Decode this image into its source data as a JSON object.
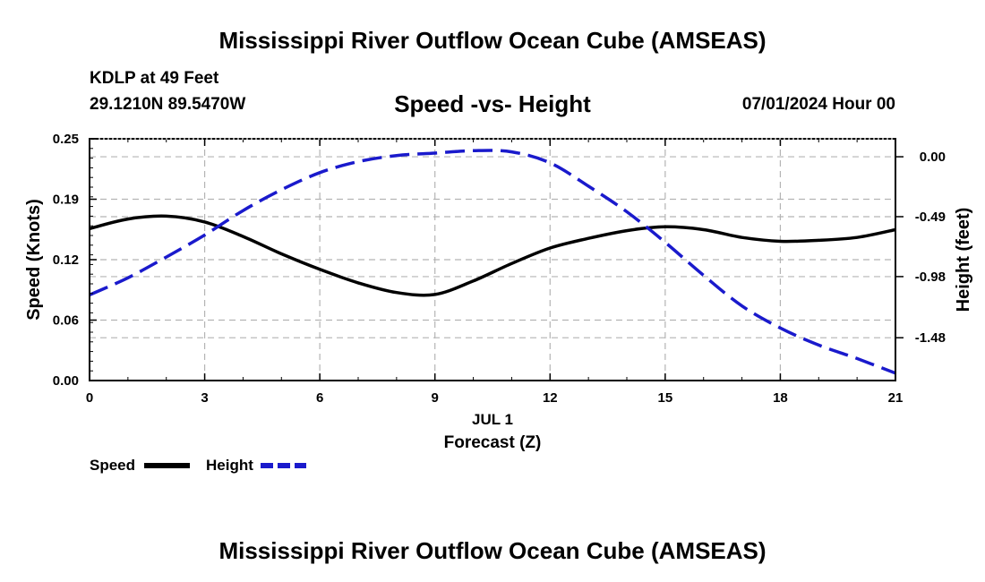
{
  "page": {
    "title": "Mississippi River Outflow Ocean Cube (AMSEAS)",
    "station": "KDLP at 49 Feet",
    "coordinates": "29.1210N  89.5470W",
    "subtitle": "Speed -vs- Height",
    "datetime": "07/01/2024 Hour 00",
    "bottom_title": "Mississippi River Outflow Ocean Cube (AMSEAS)"
  },
  "chart_data": {
    "type": "line",
    "title": "Speed -vs- Height",
    "xlabel": "Forecast (Z)",
    "x_date_label": "JUL 1",
    "ylabel": "Speed (Knots)",
    "y2label": "Height (feet)",
    "xlim": [
      0,
      21
    ],
    "ylim": [
      0,
      0.25
    ],
    "y2lim": [
      -1.83,
      0.147
    ],
    "x_ticks": [
      0,
      3,
      6,
      9,
      12,
      15,
      18,
      21
    ],
    "y_ticks": [
      "0.00",
      "0.06",
      "0.12",
      "0.19",
      "0.25"
    ],
    "y2_ticks": [
      "0.00",
      "-0.49",
      "-0.98",
      "-1.48"
    ],
    "grid": true,
    "legend": {
      "placement": "bottom-left",
      "entries": [
        "Speed",
        "Height"
      ]
    },
    "series": [
      {
        "name": "Speed",
        "axis": "left",
        "color": "#000000",
        "dash": "solid",
        "x": [
          0,
          1,
          2,
          3,
          4,
          5,
          6,
          7,
          8,
          9,
          10,
          11,
          12,
          13,
          14,
          15,
          16,
          17,
          18,
          19,
          20,
          21
        ],
        "values": [
          0.157,
          0.167,
          0.17,
          0.164,
          0.149,
          0.131,
          0.115,
          0.101,
          0.091,
          0.089,
          0.103,
          0.121,
          0.137,
          0.147,
          0.155,
          0.159,
          0.156,
          0.148,
          0.144,
          0.145,
          0.148,
          0.156
        ]
      },
      {
        "name": "Height",
        "axis": "right",
        "color": "#1a1acc",
        "dash": "dashed",
        "x": [
          0,
          1,
          2,
          3,
          4,
          5,
          6,
          7,
          8,
          9,
          10,
          11,
          12,
          13,
          14,
          15,
          16,
          17,
          18,
          19,
          20,
          21
        ],
        "values": [
          -1.13,
          -0.99,
          -0.82,
          -0.64,
          -0.44,
          -0.27,
          -0.13,
          -0.04,
          0.01,
          0.03,
          0.05,
          0.04,
          -0.05,
          -0.24,
          -0.45,
          -0.7,
          -0.97,
          -1.22,
          -1.4,
          -1.54,
          -1.65,
          -1.77
        ]
      }
    ]
  }
}
